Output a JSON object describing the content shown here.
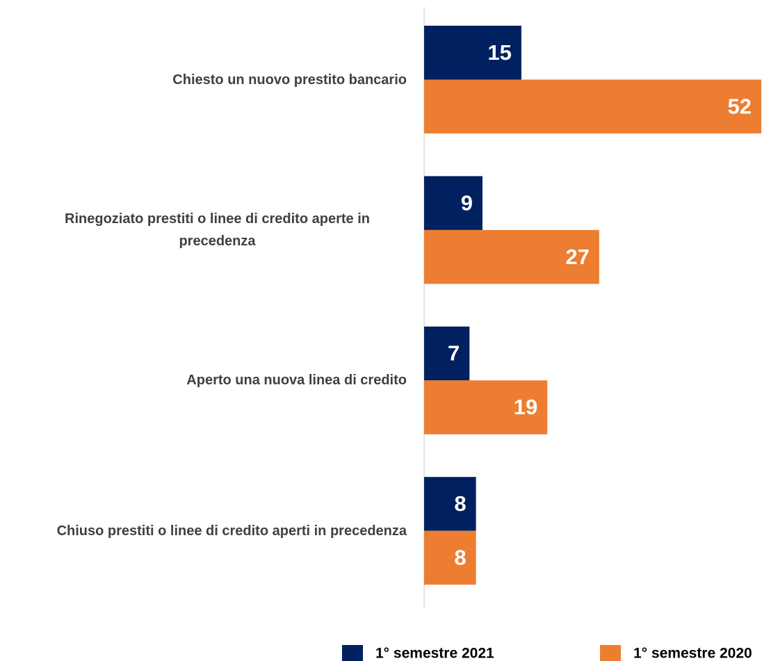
{
  "chart_data": {
    "type": "bar",
    "orientation": "horizontal",
    "categories": [
      "Chiesto un nuovo prestito bancario",
      "Rinegoziato prestiti o linee di credito aperte in precedenza",
      "Aperto una nuova linea di credito",
      "Chiuso prestiti o linee di credito aperti in precedenza"
    ],
    "series": [
      {
        "name": "1° semestre 2021",
        "color": "#002060",
        "values": [
          15,
          9,
          7,
          8
        ]
      },
      {
        "name": "1° semestre 2020",
        "color": "#ed7d31",
        "values": [
          52,
          27,
          19,
          8
        ]
      }
    ],
    "xlim": [
      0,
      52
    ],
    "data_labels": true,
    "legend": "bottom"
  }
}
